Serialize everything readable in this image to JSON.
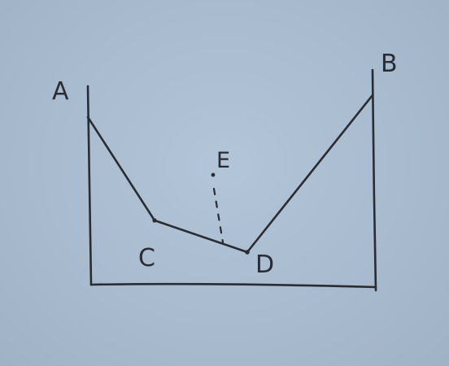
{
  "diagram": {
    "labels": {
      "a": "A",
      "b": "B",
      "c": "C",
      "d": "D",
      "e": "E"
    }
  }
}
